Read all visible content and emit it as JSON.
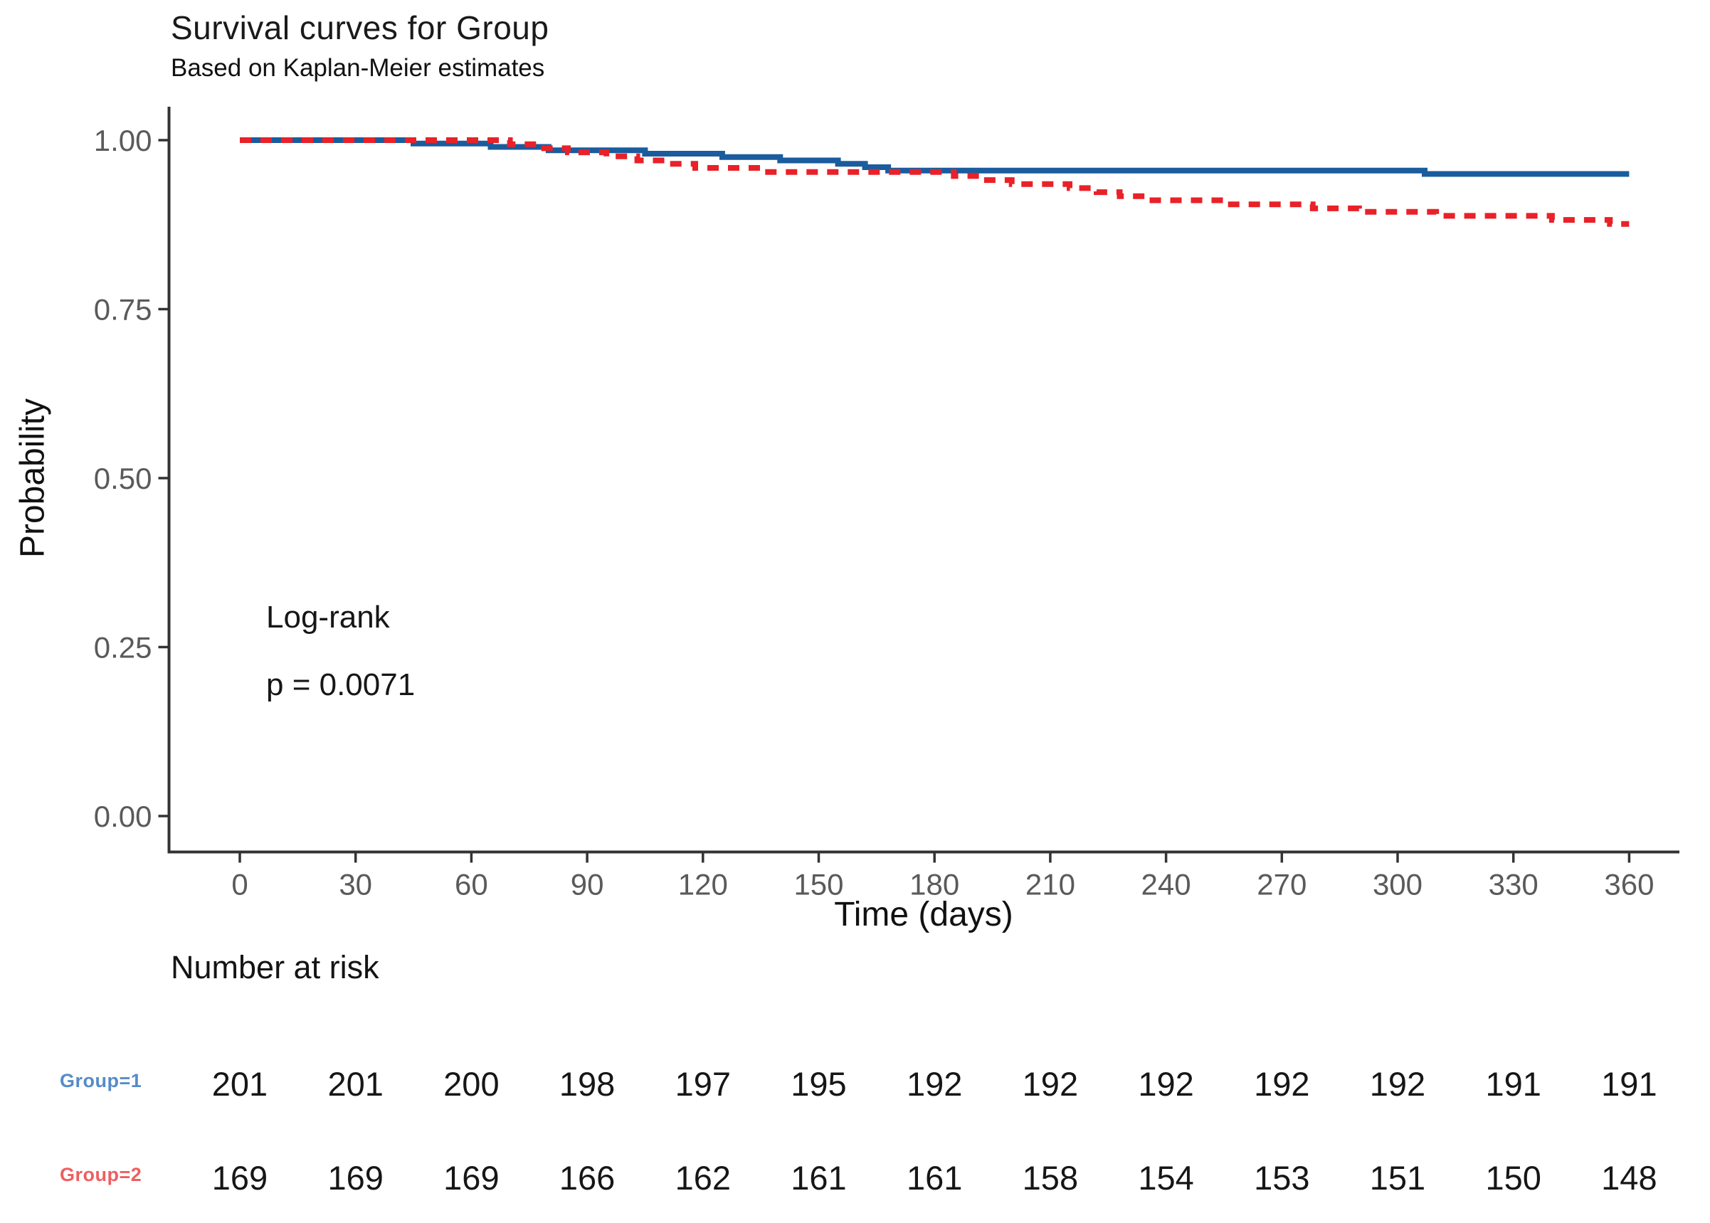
{
  "header": {
    "title": "Survival curves for Group",
    "subtitle": "Based on Kaplan-Meier estimates"
  },
  "annotation": {
    "test_name": "Log-rank",
    "p_value": "p = 0.0071"
  },
  "chart_data": {
    "type": "line",
    "subtype": "kaplan-meier-step",
    "title": "Survival curves for Group",
    "subtitle": "Based on Kaplan-Meier estimates",
    "xlabel": "Time (days)",
    "ylabel": "Probability",
    "xlim": [
      0,
      360
    ],
    "ylim": [
      0,
      1.0
    ],
    "grid": false,
    "legend_position": "none",
    "x_ticks": [
      0,
      30,
      60,
      90,
      120,
      150,
      180,
      210,
      240,
      270,
      300,
      330,
      360
    ],
    "y_tick_values": [
      1.0,
      0.75,
      0.5,
      0.25,
      0.0
    ],
    "y_tick_labels": [
      "1.00",
      "0.75",
      "0.50",
      "0.25",
      "0.00"
    ],
    "axis_color": "#333333",
    "tick_label_color": "#5a5a5a",
    "series": [
      {
        "name": "Group=1",
        "color": "#1a5c9e",
        "line_style": "solid",
        "points": [
          [
            0,
            1.0
          ],
          [
            45,
            0.995
          ],
          [
            65,
            0.99
          ],
          [
            80,
            0.985
          ],
          [
            105,
            0.98
          ],
          [
            125,
            0.975
          ],
          [
            140,
            0.97
          ],
          [
            155,
            0.965
          ],
          [
            162,
            0.96
          ],
          [
            168,
            0.955
          ],
          [
            307,
            0.95
          ],
          [
            360,
            0.95
          ]
        ]
      },
      {
        "name": "Group=2",
        "color": "#e92128",
        "line_style": "dashed",
        "points": [
          [
            0,
            1.0
          ],
          [
            70,
            0.994
          ],
          [
            78,
            0.988
          ],
          [
            85,
            0.982
          ],
          [
            95,
            0.976
          ],
          [
            103,
            0.97
          ],
          [
            110,
            0.965
          ],
          [
            118,
            0.959
          ],
          [
            135,
            0.953
          ],
          [
            185,
            0.947
          ],
          [
            192,
            0.941
          ],
          [
            200,
            0.935
          ],
          [
            215,
            0.929
          ],
          [
            222,
            0.923
          ],
          [
            228,
            0.917
          ],
          [
            235,
            0.911
          ],
          [
            255,
            0.905
          ],
          [
            278,
            0.899
          ],
          [
            290,
            0.894
          ],
          [
            310,
            0.888
          ],
          [
            340,
            0.882
          ],
          [
            355,
            0.876
          ],
          [
            360,
            0.876
          ]
        ]
      }
    ]
  },
  "risk_table": {
    "title": "Number at risk",
    "times": [
      0,
      30,
      60,
      90,
      120,
      150,
      180,
      210,
      240,
      270,
      300,
      330,
      360
    ],
    "rows": [
      {
        "label": "Group=1",
        "label_color": "#568bc9",
        "values": [
          201,
          201,
          200,
          198,
          197,
          195,
          192,
          192,
          192,
          192,
          192,
          191,
          191
        ]
      },
      {
        "label": "Group=2",
        "label_color": "#ef5e60",
        "values": [
          169,
          169,
          169,
          166,
          162,
          161,
          161,
          158,
          154,
          153,
          151,
          150,
          148
        ]
      }
    ]
  }
}
